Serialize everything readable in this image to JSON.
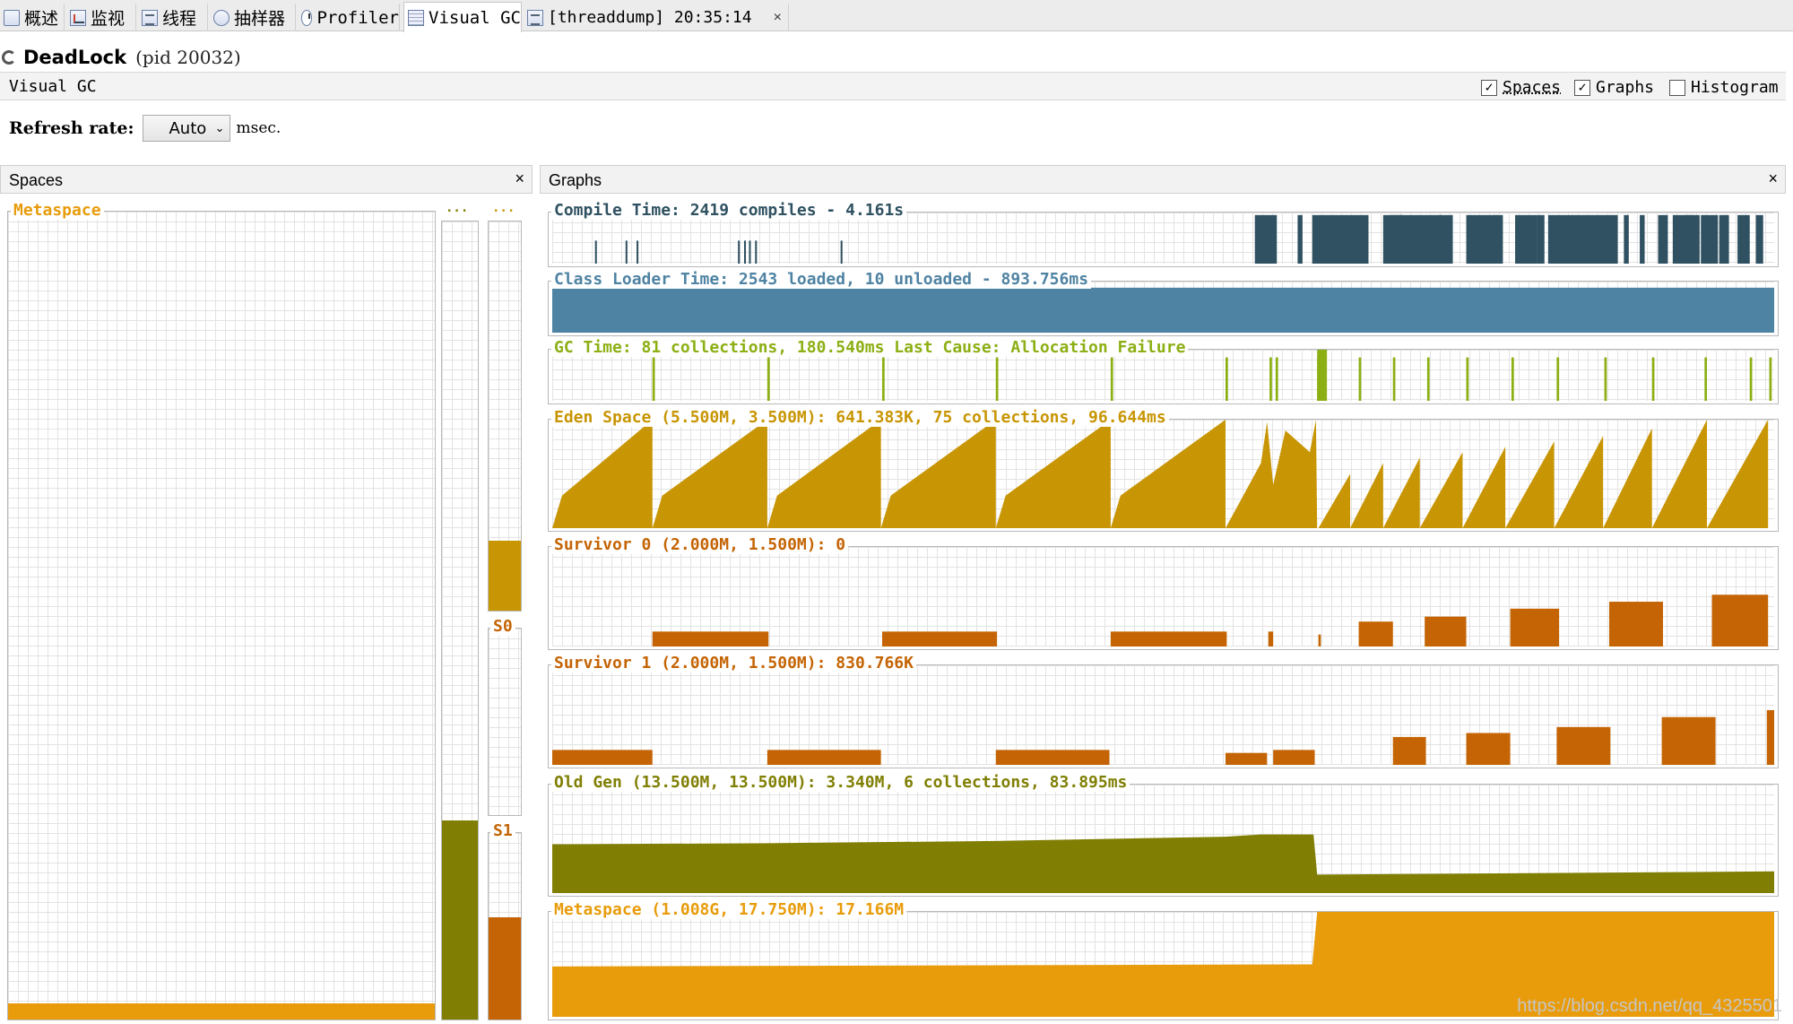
{
  "tabs": [
    {
      "label": "概述",
      "icon": "info-icon"
    },
    {
      "label": "监视",
      "icon": "monitor-chart-icon"
    },
    {
      "label": "线程",
      "icon": "threads-list-icon"
    },
    {
      "label": "抽样器",
      "icon": "sampler-icon"
    },
    {
      "label": "Profiler",
      "icon": "profiler-clock-icon"
    },
    {
      "label": "Visual GC",
      "icon": "visual-gc-icon",
      "active": true
    },
    {
      "label": "[threaddump] 20:35:14",
      "icon": "threaddump-icon",
      "close": "×"
    }
  ],
  "app": {
    "name": "DeadLock",
    "pid": "(pid 20032)"
  },
  "vgc": {
    "label": "Visual GC",
    "options": [
      {
        "label": "Spaces",
        "checked": true
      },
      {
        "label": "Graphs",
        "checked": true
      },
      {
        "label": "Histogram",
        "checked": false
      }
    ]
  },
  "refresh": {
    "label": "Refresh rate:",
    "value": "Auto",
    "unit": "msec."
  },
  "spaces_panel": {
    "title": "Spaces",
    "close": "×",
    "metaspace": {
      "label": "Metaspace",
      "fill": 0.02,
      "color": "#e89c0c"
    },
    "old": {
      "label": "...",
      "fill": 0.25,
      "color": "#807f04"
    },
    "eden": {
      "label": "...",
      "fill": 0.18,
      "color": "#c89504"
    },
    "s0": {
      "label": "S0",
      "fill": 0.0,
      "color": "#c46404"
    },
    "s1": {
      "label": "S1",
      "fill": 0.55,
      "color": "#c46404"
    }
  },
  "graphs_panel": {
    "title": "Graphs",
    "close": "×",
    "graphs": [
      {
        "id": "compile",
        "label": "Compile Time: 2419 compiles - 4.161s",
        "color": "#2f5161"
      },
      {
        "id": "classloader",
        "label": "Class Loader Time: 2543 loaded, 10 unloaded - 893.756ms",
        "color": "#4f83a3"
      },
      {
        "id": "gc",
        "label": "GC Time: 81 collections, 180.540ms Last Cause: Allocation Failure",
        "color": "#8caf13"
      },
      {
        "id": "eden",
        "label": "Eden Space (5.500M, 3.500M): 641.383K, 75 collections, 96.644ms",
        "color": "#c89504"
      },
      {
        "id": "s0",
        "label": "Survivor 0 (2.000M, 1.500M): 0",
        "color": "#c46404"
      },
      {
        "id": "s1",
        "label": "Survivor 1 (2.000M, 1.500M): 830.766K",
        "color": "#c46404"
      },
      {
        "id": "old",
        "label": "Old Gen (13.500M, 13.500M): 3.340M, 6 collections, 83.895ms",
        "color": "#807f04"
      },
      {
        "id": "meta",
        "label": "Metaspace (1.008G, 17.750M): 17.166M",
        "color": "#e89c0c"
      }
    ]
  },
  "watermark": "https://blog.csdn.net/qq_4325501"
}
